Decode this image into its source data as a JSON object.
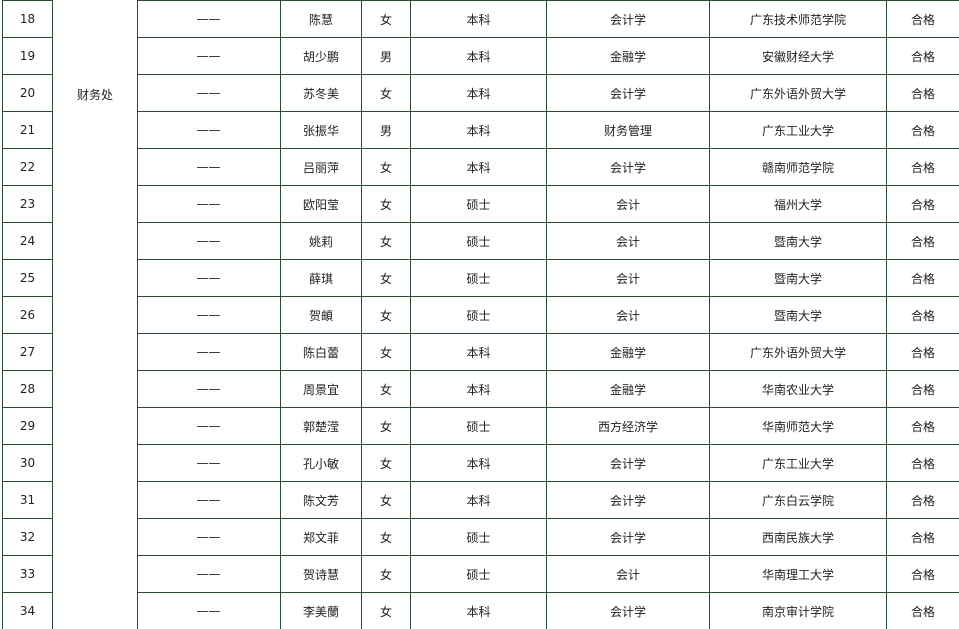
{
  "department": "财务处",
  "rows": [
    [
      "18",
      "——",
      "陈慧",
      "女",
      "本科",
      "会计学",
      "广东技术师范学院",
      "合格"
    ],
    [
      "19",
      "——",
      "胡少鹏",
      "男",
      "本科",
      "金融学",
      "安徽财经大学",
      "合格"
    ],
    [
      "20",
      "——",
      "苏冬美",
      "女",
      "本科",
      "会计学",
      "广东外语外贸大学",
      "合格"
    ],
    [
      "21",
      "——",
      "张振华",
      "男",
      "本科",
      "财务管理",
      "广东工业大学",
      "合格"
    ],
    [
      "22",
      "——",
      "吕丽萍",
      "女",
      "本科",
      "会计学",
      "赣南师范学院",
      "合格"
    ],
    [
      "23",
      "——",
      "欧阳莹",
      "女",
      "硕士",
      "会计",
      "福州大学",
      "合格"
    ],
    [
      "24",
      "——",
      "姚莉",
      "女",
      "硕士",
      "会计",
      "暨南大学",
      "合格"
    ],
    [
      "25",
      "——",
      "薛琪",
      "女",
      "硕士",
      "会计",
      "暨南大学",
      "合格"
    ],
    [
      "26",
      "——",
      "贺頔",
      "女",
      "硕士",
      "会计",
      "暨南大学",
      "合格"
    ],
    [
      "27",
      "——",
      "陈白蕾",
      "女",
      "本科",
      "金融学",
      "广东外语外贸大学",
      "合格"
    ],
    [
      "28",
      "——",
      "周景宜",
      "女",
      "本科",
      "金融学",
      "华南农业大学",
      "合格"
    ],
    [
      "29",
      "——",
      "郭楚滢",
      "女",
      "硕士",
      "西方经济学",
      "华南师范大学",
      "合格"
    ],
    [
      "30",
      "——",
      "孔小敏",
      "女",
      "本科",
      "会计学",
      "广东工业大学",
      "合格"
    ],
    [
      "31",
      "——",
      "陈文芳",
      "女",
      "本科",
      "会计学",
      "广东白云学院",
      "合格"
    ],
    [
      "32",
      "——",
      "郑文菲",
      "女",
      "硕士",
      "会计学",
      "西南民族大学",
      "合格"
    ],
    [
      "33",
      "——",
      "贺诗慧",
      "女",
      "硕士",
      "会计",
      "华南理工大学",
      "合格"
    ],
    [
      "34",
      "——",
      "李美蘭",
      "女",
      "本科",
      "会计学",
      "南京审计学院",
      "合格"
    ]
  ]
}
